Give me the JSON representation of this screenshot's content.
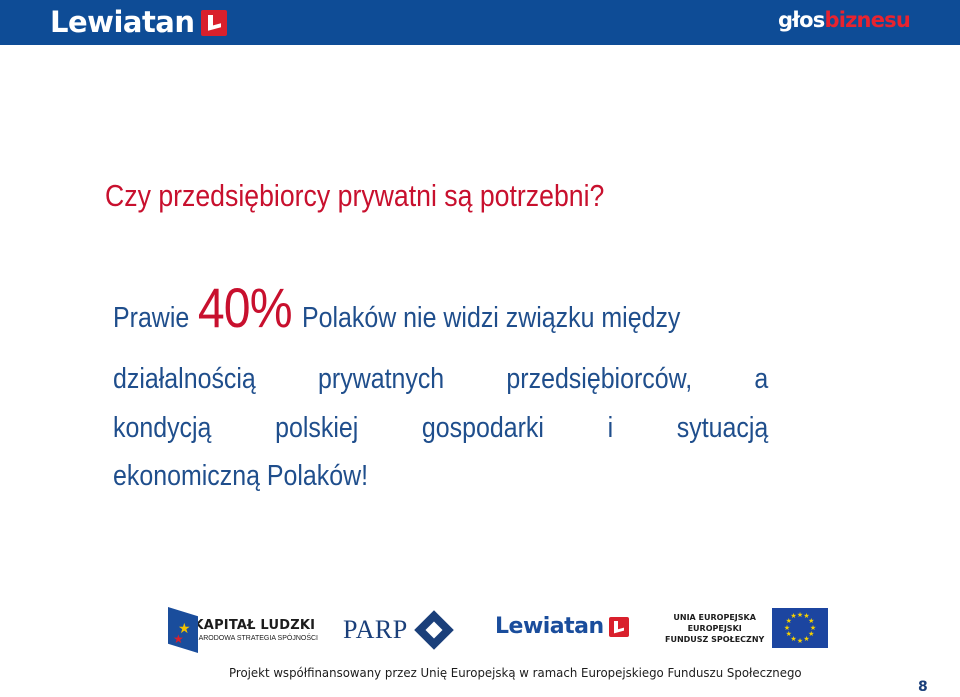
{
  "header": {
    "left_logo": "Lewiatan",
    "right_logo_part1": "głos",
    "right_logo_part2": "biznesu",
    "brand_red": "#d9202c",
    "bar_color": "#0e4c96"
  },
  "slide": {
    "title": "Czy przedsiębiorcy prywatni są potrzebni?",
    "line1_prefix": "Prawie",
    "line1_highlight": "40%",
    "line1_suffix": "Polaków nie widzi związku między",
    "line2_words": [
      "działalnością",
      "prywatnych",
      "przedsiębiorców,",
      "a"
    ],
    "line3_words": [
      "kondycją",
      "polskiej",
      "gospodarki",
      "i",
      "sytuacją"
    ],
    "line4": "ekonomiczną Polaków!",
    "title_color": "#c8102e",
    "text_color": "#1f4e8c"
  },
  "logos": {
    "kapital_title": "KAPITAŁ LUDZKI",
    "kapital_subtitle": "NARODOWA STRATEGIA SPÓJNOŚCI",
    "parp": "PARP",
    "lewiatan": "Lewiatan",
    "ue_line1": "UNIA EUROPEJSKA",
    "ue_line2": "EUROPEJSKI",
    "ue_line3": "FUNDUSZ SPOŁECZNY"
  },
  "footer": {
    "text": "Projekt współfinansowany przez Unię Europejską w ramach Europejskiego Funduszu Społecznego",
    "page_number": "8"
  }
}
